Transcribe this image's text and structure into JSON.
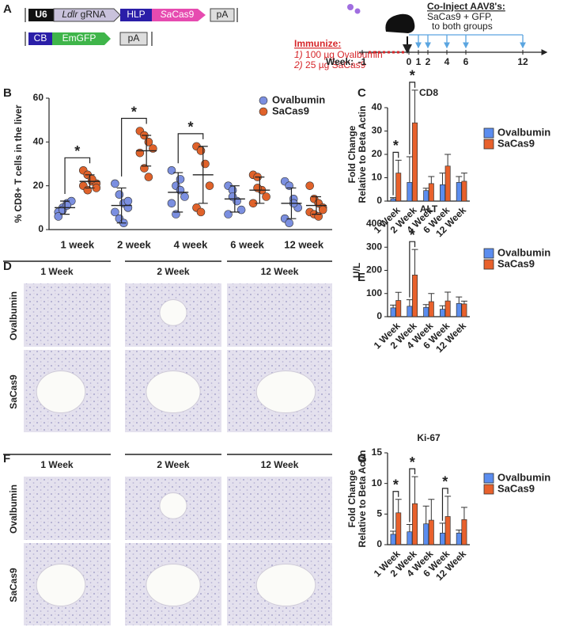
{
  "construct": {
    "panel": "A",
    "row1": {
      "u6": "U6",
      "gene": "Ldlr",
      "grna": "gRNA",
      "hlp": "HLP",
      "sa": "Sa",
      "cas9": "Cas9",
      "pa": "pA"
    },
    "row2": {
      "cb": "CB",
      "emgfp": "EmGFP",
      "pa": "pA"
    },
    "immunize": {
      "title": "Immunize:",
      "n1": "1)",
      "item1": "100 µg Ovalbumin",
      "n2": "2)",
      "item2": "25 µg SaCas9"
    },
    "inject": {
      "title": "Co-Inject AAV8's:",
      "line1": "SaCas9 + GFP,",
      "line2": "to both groups"
    },
    "week_label": "Week:",
    "weeks": [
      -1,
      0,
      1,
      2,
      4,
      6,
      12
    ]
  },
  "chart_data": [
    {
      "type": "dot",
      "panel": "B",
      "ylabel": [
        "% CD8+ T cells in the liver"
      ],
      "categories": [
        "1 week",
        "2 week",
        "4 week",
        "6 week",
        "12 week"
      ],
      "ylim": [
        0,
        60
      ],
      "yticks": [
        0,
        20,
        40,
        60
      ],
      "significance_label": "*",
      "significant": [
        true,
        true,
        true,
        false,
        false
      ],
      "series": [
        {
          "name": "Ovalbumin",
          "color": "#7b8fe0",
          "values": [
            10,
            11,
            17,
            14,
            12
          ],
          "errors": [
            3,
            8,
            9,
            6,
            7
          ],
          "points": [
            [
              8,
              10,
              12,
              13,
              6,
              9,
              11
            ],
            [
              21,
              16,
              12,
              10,
              8,
              5,
              3,
              13
            ],
            [
              27,
              20,
              18,
              15,
              12,
              7,
              23
            ],
            [
              20,
              18,
              13,
              9,
              7,
              15
            ],
            [
              22,
              20,
              14,
              10,
              5,
              3,
              12
            ]
          ]
        },
        {
          "name": "SaCas9",
          "color": "#e0622a",
          "values": [
            22,
            36,
            25,
            18,
            11
          ],
          "errors": [
            3,
            7,
            13,
            6,
            4
          ],
          "points": [
            [
              27,
              25,
              22,
              21,
              20,
              18,
              23,
              19
            ],
            [
              45,
              43,
              40,
              37,
              35,
              28,
              24
            ],
            [
              38,
              36,
              30,
              20,
              10,
              8
            ],
            [
              25,
              24,
              18,
              15,
              12,
              19
            ],
            [
              20,
              14,
              12,
              10,
              8,
              7,
              6,
              9
            ]
          ]
        }
      ]
    },
    {
      "type": "bar",
      "panel": "C",
      "title": "CD8",
      "ylabel": [
        "Fold Change",
        "Relative to Beta Actin"
      ],
      "categories": [
        "1 Week",
        "2 Week",
        "4 Week",
        "6 Week",
        "12 Week"
      ],
      "ylim": [
        0,
        40
      ],
      "yticks": [
        0,
        10,
        20,
        30,
        40
      ],
      "significance_label": "*",
      "significant": [
        true,
        true,
        false,
        false,
        false
      ],
      "series": [
        {
          "name": "Ovalbumin",
          "color": "#5b8def",
          "values": [
            1,
            8,
            4.5,
            7,
            8
          ],
          "errors": [
            0.5,
            11,
            1,
            5,
            2.5
          ]
        },
        {
          "name": "SaCas9",
          "color": "#e8612c",
          "values": [
            12,
            33.5,
            7.5,
            15,
            8.5
          ],
          "errors": [
            5.5,
            14,
            3,
            5,
            3.5
          ]
        }
      ]
    },
    {
      "type": "bar",
      "panel": "E",
      "title": "ALT",
      "ylabel": [
        "U/L"
      ],
      "categories": [
        "1 Week",
        "2 Week",
        "4 Week",
        "6 Week",
        "12 Week"
      ],
      "ylim": [
        0,
        400
      ],
      "yticks": [
        0,
        100,
        200,
        300,
        400
      ],
      "significance_label": "*",
      "significant": [
        false,
        true,
        false,
        false,
        false
      ],
      "series": [
        {
          "name": "Ovalbumin",
          "color": "#5b8def",
          "values": [
            38,
            45,
            40,
            32,
            57
          ],
          "errors": [
            12,
            28,
            12,
            15,
            28
          ]
        },
        {
          "name": "SaCas9",
          "color": "#e8612c",
          "values": [
            70,
            180,
            65,
            68,
            55
          ],
          "errors": [
            35,
            110,
            35,
            38,
            12
          ]
        }
      ]
    },
    {
      "type": "bar",
      "panel": "G",
      "title": "Ki-67",
      "ylabel": [
        "Fold Change",
        "Relative to Beta Actin"
      ],
      "categories": [
        "1 Week",
        "2 Week",
        "4 Week",
        "6 Week",
        "12 Week"
      ],
      "ylim": [
        0,
        15
      ],
      "yticks": [
        0,
        5,
        10,
        15
      ],
      "significance_label": "*",
      "significant": [
        true,
        true,
        false,
        true,
        false
      ],
      "series": [
        {
          "name": "Ovalbumin",
          "color": "#5b8def",
          "values": [
            1.7,
            2.1,
            3.4,
            1.9,
            1.9
          ],
          "errors": [
            0.5,
            1.2,
            2.9,
            1.6,
            0.5
          ]
        },
        {
          "name": "SaCas9",
          "color": "#e8612c",
          "values": [
            5.2,
            6.7,
            4.0,
            4.6,
            4.1
          ],
          "errors": [
            2.2,
            4.4,
            3.4,
            3.3,
            2.0
          ]
        }
      ]
    }
  ],
  "histology": [
    {
      "panel": "D",
      "columns": [
        "1 Week",
        "2 Week",
        "12 Week"
      ],
      "rows": [
        "Ovalbumin",
        "SaCas9"
      ]
    },
    {
      "panel": "F",
      "columns": [
        "1 Week",
        "2 Week",
        "12 Week"
      ],
      "rows": [
        "Ovalbumin",
        "SaCas9"
      ]
    }
  ]
}
